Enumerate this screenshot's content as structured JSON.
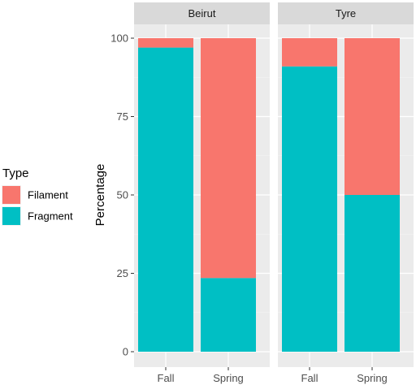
{
  "chart_data": {
    "type": "bar",
    "stacked": true,
    "facets": [
      "Beirut",
      "Tyre"
    ],
    "categories": [
      "Fall",
      "Spring"
    ],
    "series": [
      {
        "name": "Filament",
        "color": "#F8766D",
        "values": {
          "Beirut": [
            3,
            76.5
          ],
          "Tyre": [
            9,
            50
          ]
        }
      },
      {
        "name": "Fragment",
        "color": "#00BFC4",
        "values": {
          "Beirut": [
            97,
            23.5
          ],
          "Tyre": [
            91,
            50
          ]
        }
      }
    ],
    "ylabel": "Percentage",
    "xlabel": "",
    "ylim": [
      0,
      100
    ],
    "yticks": [
      0,
      25,
      50,
      75,
      100
    ],
    "legend": {
      "title": "Type",
      "position": "left"
    },
    "grid": true,
    "panel_background": "#EBEBEB",
    "strip_background": "#D9D9D9"
  }
}
